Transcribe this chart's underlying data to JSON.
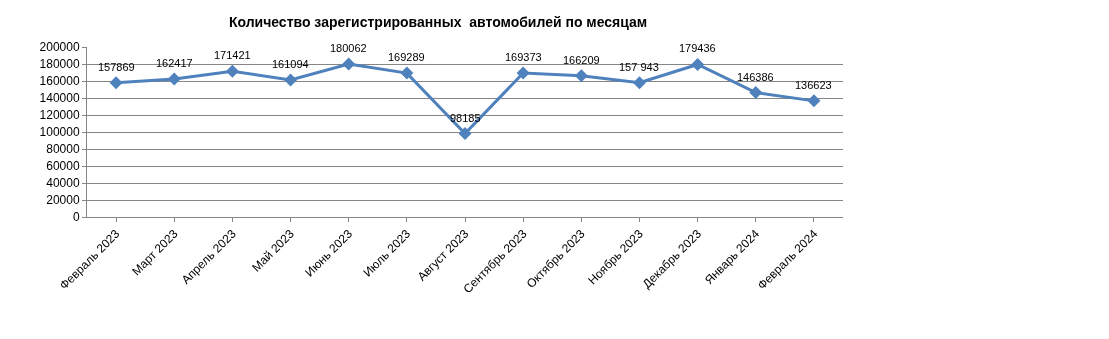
{
  "chart_data": {
    "type": "line",
    "title": "Количество зарегистрированных  автомобилей по месяцам",
    "categories": [
      "Февраль 2023",
      "Март 2023",
      "Апрель 2023",
      "Май 2023",
      "Июнь 2023",
      "Июль 2023",
      "Август 2023",
      "Сентябрь 2023",
      "Октябрь 2023",
      "Ноябрь 2023",
      "Декабрь 2023",
      "Январь 2024",
      "Февраль 2024"
    ],
    "series": [
      {
        "color": "#4f81bd",
        "values": [
          157869,
          162417,
          171421,
          161094,
          180062,
          169289,
          98185,
          169373,
          166209,
          157943,
          179436,
          146386,
          136623
        ],
        "value_labels": [
          "157869",
          "162417",
          "171421",
          "161094",
          "180062",
          "169289",
          "98185",
          "169373",
          "166209",
          "157 943",
          "179436",
          "146386",
          "136623"
        ]
      }
    ],
    "ylim": [
      0,
      200000
    ],
    "yticks": [
      0,
      20000,
      40000,
      60000,
      80000,
      100000,
      120000,
      140000,
      160000,
      180000,
      200000
    ],
    "grid": "y",
    "marker": "diamond",
    "line_style": "solid"
  }
}
